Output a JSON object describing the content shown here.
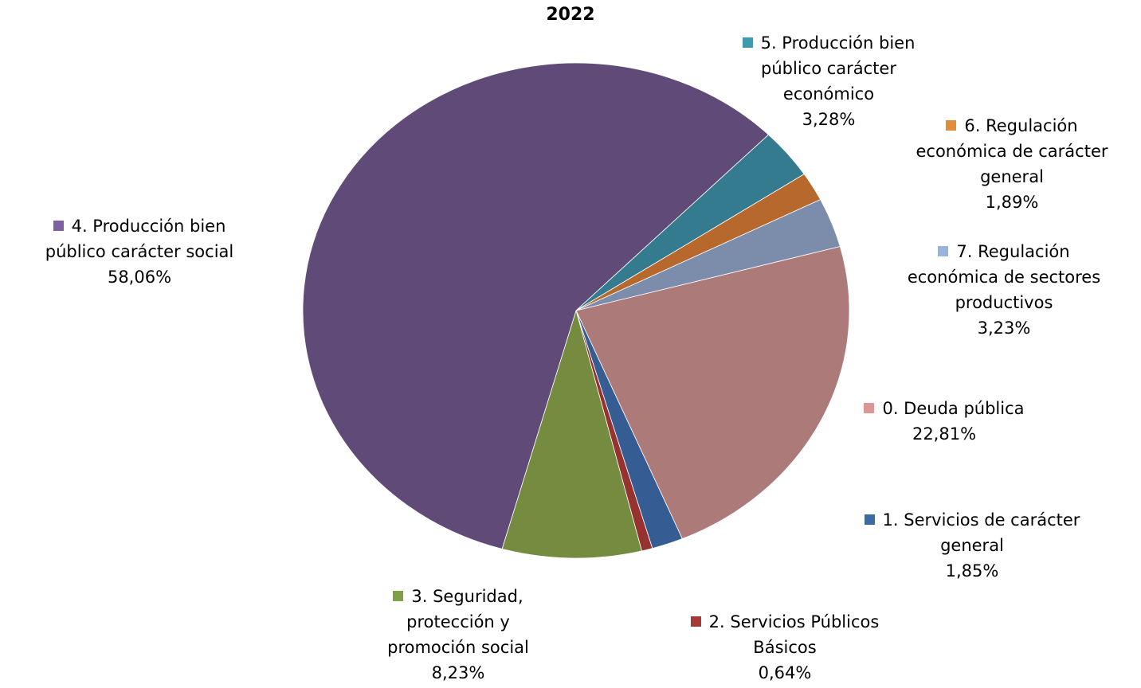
{
  "chart_data": {
    "type": "pie",
    "title": "2022",
    "slices": [
      {
        "key": "s0",
        "label_lines": [
          "0. Deuda pública"
        ],
        "value": 22.81,
        "value_label": "22,81%",
        "color": "#ad7a7a",
        "swatch": "#d99795"
      },
      {
        "key": "s1",
        "label_lines": [
          "1. Servicios de carácter",
          "general"
        ],
        "value": 1.85,
        "value_label": "1,85%",
        "color": "#365d93",
        "swatch": "#3c6aa4"
      },
      {
        "key": "s2",
        "label_lines": [
          "2. Servicios Públicos",
          "Básicos"
        ],
        "value": 0.64,
        "value_label": "0,64%",
        "color": "#963330",
        "swatch": "#a53a38"
      },
      {
        "key": "s3",
        "label_lines": [
          "3. Seguridad,",
          "protección y",
          "promoción social"
        ],
        "value": 8.23,
        "value_label": "8,23%",
        "color": "#748b40",
        "swatch": "#80a044"
      },
      {
        "key": "s4",
        "label_lines": [
          "4. Producción bien",
          "público carácter social"
        ],
        "value": 58.06,
        "value_label": "58,06%",
        "color": "#604a78",
        "swatch": "#7c62a0"
      },
      {
        "key": "s5",
        "label_lines": [
          "5. Producción bien",
          "público carácter",
          "económico"
        ],
        "value": 3.28,
        "value_label": "3,28%",
        "color": "#357b8f",
        "swatch": "#3f9aaf"
      },
      {
        "key": "s6",
        "label_lines": [
          "6. Regulación",
          "económica de carácter",
          "general"
        ],
        "value": 1.89,
        "value_label": "1,89%",
        "color": "#b7682c",
        "swatch": "#e38c3a"
      },
      {
        "key": "s7",
        "label_lines": [
          "7. Regulación",
          "económica de sectores",
          "productivos"
        ],
        "value": 3.23,
        "value_label": "3,23%",
        "color": "#7c8dab",
        "swatch": "#9ab2de"
      }
    ]
  }
}
